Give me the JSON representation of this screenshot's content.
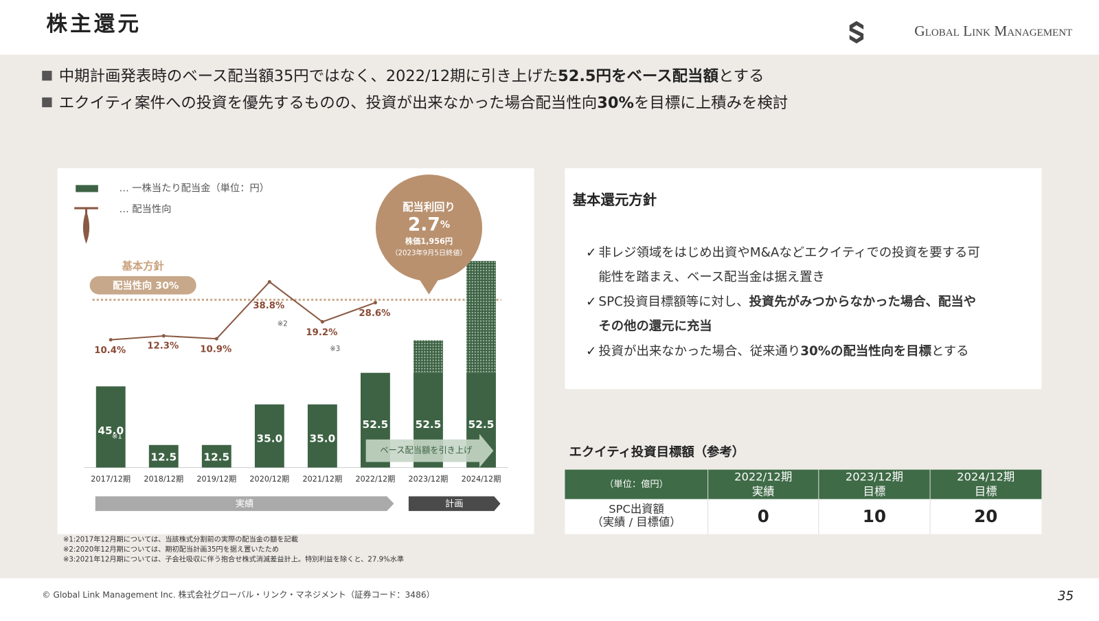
{
  "header": {
    "title": "株主還元",
    "logo": "Global Link Management"
  },
  "bullets": [
    [
      {
        "text": "中期計画発表時のベース配当額35円ではなく、2022/12期に引き上げた"
      },
      {
        "text": "52.5円をベース配当額",
        "bold": true
      },
      {
        "text": "とする"
      }
    ],
    [
      {
        "text": "エクイティ案件への投資を優先するものの、投資が出来なかった場合配当性向"
      },
      {
        "text": "30%",
        "bold": true
      },
      {
        "text": "を目標に上積みを検討"
      }
    ]
  ],
  "chart_data": {
    "type": "bar",
    "legend": [
      "… 一株当たり配当金（単位：円）",
      "… 配当性向"
    ],
    "categories": [
      "2017/12期",
      "2018/12期",
      "2019/12期",
      "2020/12期",
      "2021/12期",
      "2022/12期",
      "2023/12期",
      "2024/12期"
    ],
    "ylim": [
      0,
      115
    ],
    "y2lim": [
      0,
      45
    ],
    "series": [
      {
        "color": "#3d6344",
        "values": [
          45,
          12.5,
          12.5,
          35,
          35,
          52.5,
          52.5,
          52.5
        ],
        "value_labels": [
          "45.0",
          "12.5",
          "12.5",
          "35.0",
          "35.0",
          "52.5",
          "52.5",
          "52.5"
        ]
      },
      {
        "color": "#3d6344",
        "pattern": "dots",
        "values": [
          null,
          null,
          null,
          null,
          null,
          null,
          18,
          62
        ]
      },
      {
        "type": "line",
        "axis": "y2",
        "color": "#8a5a44",
        "values": [
          10.4,
          12.3,
          10.9,
          38.8,
          19.2,
          28.6,
          null,
          null
        ],
        "value_labels": [
          "10.4%",
          "12.3%",
          "10.9%",
          "38.8%",
          "19.2%",
          "28.6%",
          null,
          null
        ]
      }
    ],
    "notes": [
      "※1",
      "※2",
      "※3"
    ],
    "reference": {
      "value": 30,
      "title": "基本方針",
      "label": "配当性向 30%"
    },
    "bubble": {
      "title": "配当利回り",
      "value": 2.7,
      "unit": "%",
      "price": "株価1,956円",
      "date": "（2023年9月5日終値）"
    },
    "arrow": "ベース配当額を引き上げ",
    "phases": [
      "実績",
      "計画"
    ]
  },
  "footnotes": [
    "※1:2017年12月期については、当該株式分割前の実際の配当金の額を記載",
    "※2:2020年12月期については、期初配当計画35円を据え置いたため",
    "※3:2021年12月期については、子会社吸収に伴う抱合せ株式消滅差益計上。特別利益を除くと、27.9%水準"
  ],
  "policy": {
    "title": "基本還元方針",
    "marker": "✓",
    "lines": [
      [
        {
          "text": "非レジ領域をはじめ出資やM&Aなどエクイティでの投資を要する可"
        }
      ],
      [
        {
          "text": "能性を踏まえ、ベース配当金は据え置き"
        }
      ],
      [
        {
          "text": "SPC投資目標額等に対し、"
        },
        {
          "text": "投資先がみつからなかった場合、配当や",
          "bold": true
        }
      ],
      [
        {
          "text": "その他の還元に充当",
          "bold": true
        }
      ],
      [
        {
          "text": "投資が出来なかった場合、従来通り"
        },
        {
          "text": "30%の配当性向を目標",
          "bold": true
        },
        {
          "text": "とする"
        }
      ]
    ]
  },
  "table": {
    "title": "エクイティ投資目標額（参考）",
    "headers": [
      [
        "（単位：億円）"
      ],
      [
        "2022/12期",
        "実績"
      ],
      [
        "2023/12期",
        "目標"
      ],
      [
        "2024/12期",
        "目標"
      ]
    ],
    "rows": [
      [
        [
          "SPC出資額",
          "（実績 / 目標値）"
        ],
        0,
        10,
        20
      ]
    ]
  },
  "footer": {
    "copyright": "© Global Link Management Inc.  株式会社グローバル・リンク・マネジメント（証券コード：3486）",
    "page": "35"
  }
}
